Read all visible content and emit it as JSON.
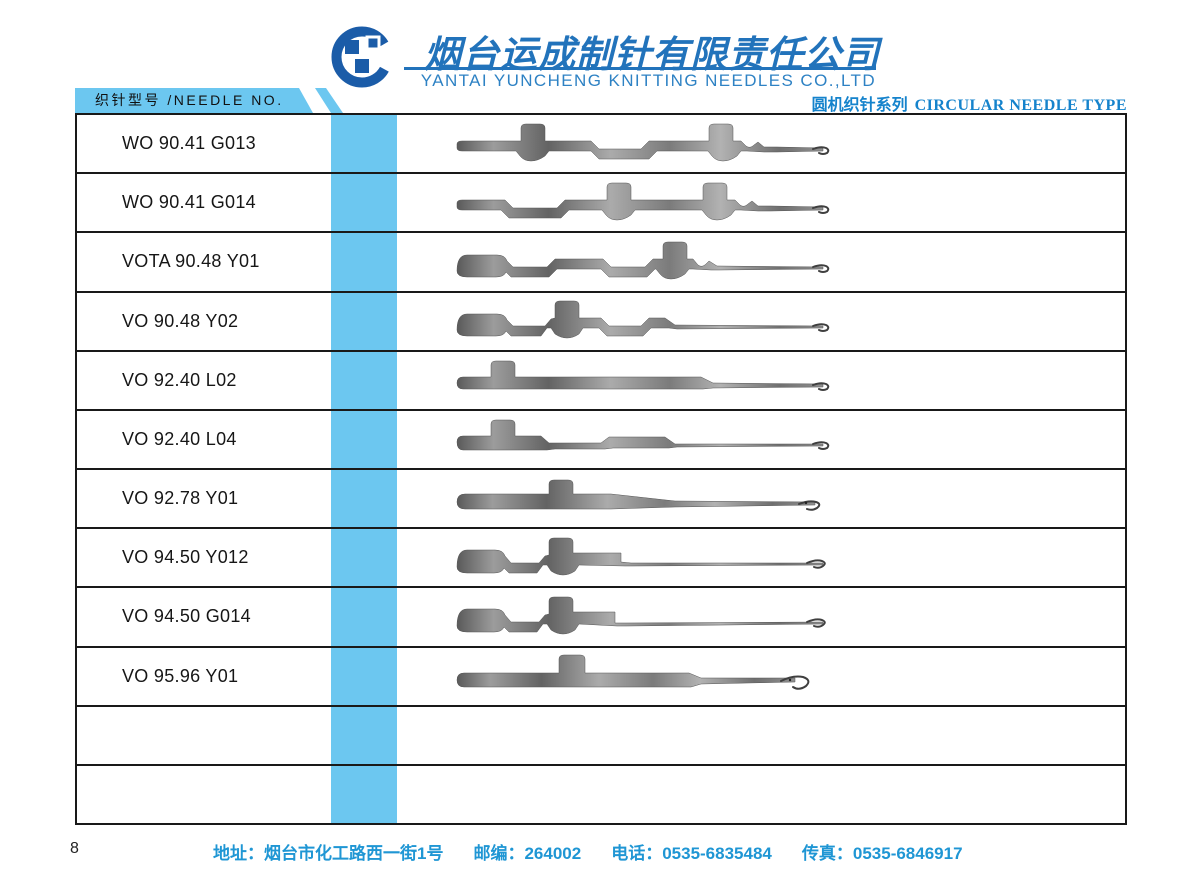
{
  "header": {
    "company_name_cn": "烟台运成制针有限责任公司",
    "company_name_en": "YANTAI YUNCHENG KNITTING NEEDLES CO.,LTD",
    "needle_no_label": "织针型号 /NEEDLE NO.",
    "series_label_cn": "圆机织针系列",
    "series_label_en": "CIRCULAR NEEDLE TYPE"
  },
  "table": {
    "rows": [
      {
        "model": "WO 90.41 G013",
        "needle_shape": "two-butts-center-dip"
      },
      {
        "model": "WO 90.41 G014",
        "needle_shape": "dip-two-butts"
      },
      {
        "model": "VOTA 90.48 Y01",
        "needle_shape": "block-double-dip-mid-butt"
      },
      {
        "model": "VO 90.48 Y02",
        "needle_shape": "block-butt-double-dip"
      },
      {
        "model": "VO 92.40 L02",
        "needle_shape": "left-butt-straight"
      },
      {
        "model": "VO 92.40 L04",
        "needle_shape": "left-butt-stepped"
      },
      {
        "model": "VO 92.78 Y01",
        "needle_shape": "mid-butt-taper"
      },
      {
        "model": "VO 94.50 Y012",
        "needle_shape": "block-butt-step"
      },
      {
        "model": "VO 94.50 G014",
        "needle_shape": "block-butt-step-notch"
      },
      {
        "model": "VO 95.96 Y01",
        "needle_shape": "tall-butt-big-hook"
      },
      {
        "model": "",
        "needle_shape": ""
      },
      {
        "model": "",
        "needle_shape": ""
      }
    ]
  },
  "footer": {
    "page_number": "8",
    "address_label": "地址：",
    "address_value": "烟台市化工路西一街1号",
    "zip_label": "邮编：",
    "zip_value": "264002",
    "phone_label": "电话：",
    "phone_value": "0535-6835484",
    "fax_label": "传真：",
    "fax_value": "0535-6846917"
  },
  "colors": {
    "band_blue": "#6cc7f0",
    "accent_blue": "#1583cc",
    "footer_blue": "#1f96d4",
    "logo_blue": "#1b5ca8",
    "name_blue": "#2273bb"
  }
}
